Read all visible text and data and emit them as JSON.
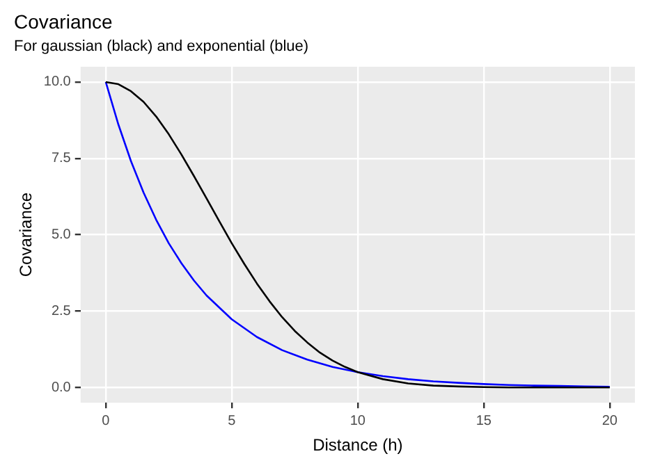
{
  "chart_data": {
    "type": "line",
    "title": "Covariance",
    "subtitle": "For gaussian (black) and exponential (blue)",
    "xlabel": "Distance (h)",
    "ylabel": "Covariance",
    "series": [
      {
        "color": "#000000",
        "x": [
          0,
          0.5,
          1,
          1.5,
          2,
          2.5,
          3,
          3.5,
          4,
          4.5,
          5,
          5.5,
          6,
          6.5,
          7,
          7.5,
          8,
          8.5,
          9,
          9.5,
          10,
          11,
          12,
          13,
          14,
          15,
          16,
          18,
          20
        ],
        "values": [
          10,
          9.93,
          9.7,
          9.35,
          8.87,
          8.29,
          7.63,
          6.92,
          6.19,
          5.45,
          4.72,
          4.04,
          3.4,
          2.82,
          2.3,
          1.85,
          1.47,
          1.14,
          0.88,
          0.67,
          0.5,
          0.27,
          0.13,
          0.06,
          0.03,
          0.01,
          0,
          0,
          0
        ]
      },
      {
        "color": "#0000ff",
        "x": [
          0,
          0.5,
          1,
          1.5,
          2,
          2.5,
          3,
          3.5,
          4,
          5,
          6,
          7,
          8,
          9,
          10,
          11,
          12,
          13,
          14,
          15,
          16,
          17,
          18,
          19,
          20
        ],
        "values": [
          10,
          8.61,
          7.41,
          6.38,
          5.49,
          4.72,
          4.07,
          3.5,
          3.01,
          2.23,
          1.65,
          1.22,
          0.91,
          0.67,
          0.5,
          0.37,
          0.27,
          0.2,
          0.15,
          0.11,
          0.08,
          0.06,
          0.05,
          0.03,
          0.02
        ]
      }
    ],
    "xlim": [
      -1,
      21
    ],
    "xticks": [
      0,
      5,
      10,
      15,
      20
    ],
    "ylim": [
      -0.5,
      10.5
    ],
    "yticks": [
      {
        "value": 0,
        "label": "0.0"
      },
      2.5,
      {
        "value": 5,
        "label": "5.0"
      },
      7.5,
      {
        "value": 10,
        "label": "10.0"
      }
    ],
    "grid": true,
    "legend": false,
    "marker": "none",
    "line_style": "solid"
  }
}
